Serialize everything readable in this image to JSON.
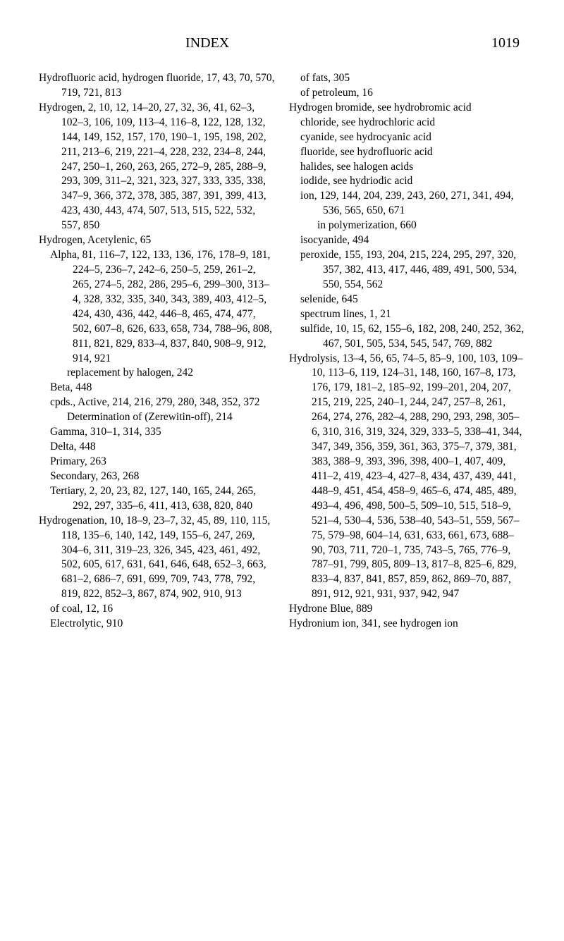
{
  "header": {
    "title": "INDEX",
    "pagenum": "1019"
  },
  "col1": [
    {
      "cls": "entry",
      "t": "Hydrofluoric acid, hydrogen fluoride, 17, 43, 70, 570, 719, 721, 813"
    },
    {
      "cls": "entry",
      "t": "Hydrogen, 2, 10, 12, 14–20, 27, 32, 36, 41, 62–3, 102–3, 106, 109, 113–4, 116–8, 122, 128, 132, 144, 149, 152, 157, 170, 190–1, 195, 198, 202, 211, 213–6, 219, 221–4, 228, 232, 234–8, 244, 247, 250–1, 260, 263, 265, 272–9, 285, 288–9, 293, 309, 311–2, 321, 323, 327, 333, 335, 338, 347–9, 366, 372, 378, 385, 387, 391, 399, 413, 423, 430, 443, 474, 507, 513, 515, 522, 532, 557, 850"
    },
    {
      "cls": "entry",
      "t": "Hydrogen, Acetylenic, 65"
    },
    {
      "cls": "sub1",
      "t": "Alpha, 81, 116–7, 122, 133, 136, 176, 178–9, 181, 224–5, 236–7, 242–6, 250–5, 259, 261–2, 265, 274–5, 282, 286, 295–6, 299–300, 313–4, 328, 332, 335, 340, 343, 389, 403, 412–5, 424, 430, 436, 442, 446–8, 465, 474, 477, 502, 607–8, 626, 633, 658, 734, 788–96, 808, 811, 821, 829, 833–4, 837, 840, 908–9, 912, 914, 921"
    },
    {
      "cls": "sub2",
      "t": "replacement by halogen, 242"
    },
    {
      "cls": "sub1",
      "t": "Beta, 448"
    },
    {
      "cls": "sub1",
      "t": "cpds., Active, 214, 216, 279, 280, 348, 352, 372"
    },
    {
      "cls": "sub2",
      "t": "Determination of (Zerewitin-off), 214"
    },
    {
      "cls": "sub1",
      "t": "Gamma, 310–1, 314, 335"
    },
    {
      "cls": "sub1",
      "t": "Delta, 448"
    },
    {
      "cls": "sub1",
      "t": "Primary, 263"
    },
    {
      "cls": "sub1",
      "t": "Secondary, 263, 268"
    },
    {
      "cls": "sub1",
      "t": "Tertiary, 2, 20, 23, 82, 127, 140, 165, 244, 265, 292, 297, 335–6, 411, 413, 638, 820, 840"
    },
    {
      "cls": "entry",
      "t": "Hydrogenation, 10, 18–9, 23–7, 32, 45, 89, 110, 115, 118, 135–6, 140, 142, 149, 155–6, 247, 269, 304–6, 311, 319–23, 326, 345, 423, 461, 492, 502, 605, 617, 631, 641, 646, 648, 652–3, 663, 681–2, 686–7, 691, 699, 709, 743, 778, 792, 819, 822, 852–3, 867, 874, 902, 910, 913"
    },
    {
      "cls": "sub1",
      "t": "of coal, 12, 16"
    },
    {
      "cls": "sub1",
      "t": "Electrolytic, 910"
    }
  ],
  "col2": [
    {
      "cls": "sub1",
      "t": "of fats, 305"
    },
    {
      "cls": "sub1",
      "t": "of petroleum, 16"
    },
    {
      "cls": "entry",
      "t": "Hydrogen bromide, see hydrobromic acid"
    },
    {
      "cls": "sub1",
      "t": "chloride, see hydrochloric acid"
    },
    {
      "cls": "sub1",
      "t": "cyanide, see hydrocyanic acid"
    },
    {
      "cls": "sub1",
      "t": "fluoride, see hydrofluoric acid"
    },
    {
      "cls": "sub1",
      "t": "halides, see halogen acids"
    },
    {
      "cls": "sub1",
      "t": "iodide, see hydriodic acid"
    },
    {
      "cls": "sub1",
      "t": "ion, 129, 144, 204, 239, 243, 260, 271, 341, 494, 536, 565, 650, 671"
    },
    {
      "cls": "sub2",
      "t": "in polymerization, 660"
    },
    {
      "cls": "sub1",
      "t": "isocyanide, 494"
    },
    {
      "cls": "sub1",
      "t": "peroxide, 155, 193, 204, 215, 224, 295, 297, 320, 357, 382, 413, 417, 446, 489, 491, 500, 534, 550, 554, 562"
    },
    {
      "cls": "sub1",
      "t": "selenide, 645"
    },
    {
      "cls": "sub1",
      "t": "spectrum lines, 1, 21"
    },
    {
      "cls": "sub1",
      "t": "sulfide, 10, 15, 62, 155–6, 182, 208, 240, 252, 362, 467, 501, 505, 534, 545, 547, 769, 882"
    },
    {
      "cls": "entry",
      "t": "Hydrolysis, 13–4, 56, 65, 74–5, 85–9, 100, 103, 109–10, 113–6, 119, 124–31, 148, 160, 167–8, 173, 176, 179, 181–2, 185–92, 199–201, 204, 207, 215, 219, 225, 240–1, 244, 247, 257–8, 261, 264, 274, 276, 282–4, 288, 290, 293, 298, 305–6, 310, 316, 319, 324, 329, 333–5, 338–41, 344, 347, 349, 356, 359, 361, 363, 375–7, 379, 381, 383, 388–9, 393, 396, 398, 400–1, 407, 409, 411–2, 419, 423–4, 427–8, 434, 437, 439, 441, 448–9, 451, 454, 458–9, 465–6, 474, 485, 489, 493–4, 496, 498, 500–5, 509–10, 515, 518–9, 521–4, 530–4, 536, 538–40, 543–51, 559, 567–75, 579–98, 604–14, 631, 633, 661, 673, 688–90, 703, 711, 720–1, 735, 743–5, 765, 776–9, 787–91, 799, 805, 809–13, 817–8, 825–6, 829, 833–4, 837, 841, 857, 859, 862, 869–70, 887, 891, 912, 921, 931, 937, 942, 947"
    },
    {
      "cls": "entry",
      "t": "Hydrone Blue, 889"
    },
    {
      "cls": "entry",
      "t": "Hydronium ion, 341, see hydrogen ion"
    }
  ]
}
